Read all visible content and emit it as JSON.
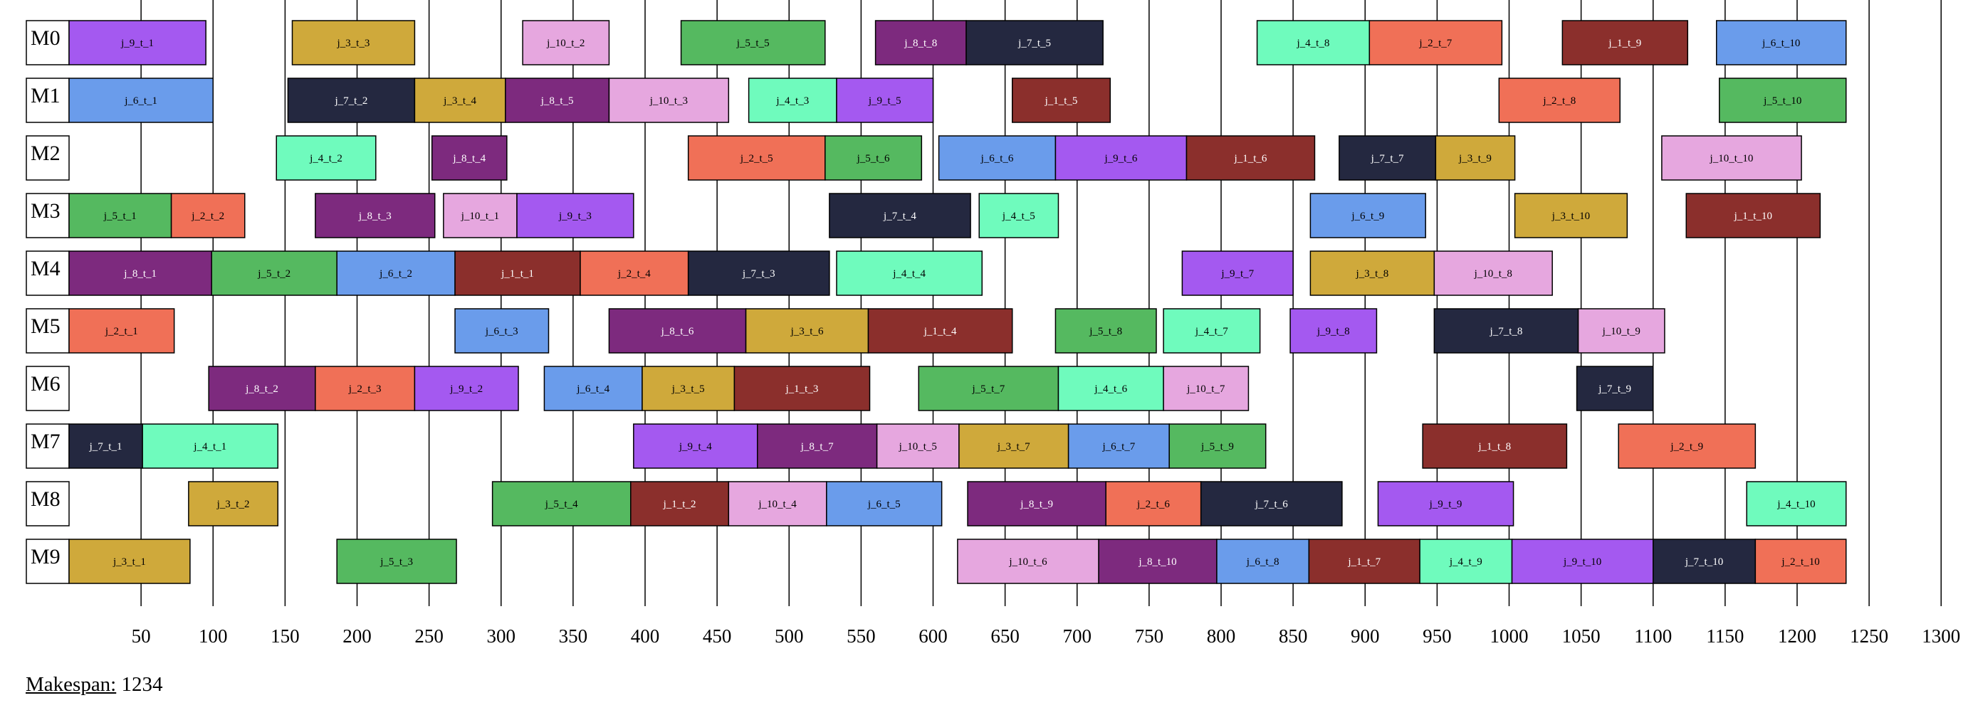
{
  "chart_data": {
    "type": "gantt",
    "machines": [
      "M0",
      "M1",
      "M2",
      "M3",
      "M4",
      "M5",
      "M6",
      "M7",
      "M8",
      "M9"
    ],
    "x_ticks": [
      50,
      100,
      150,
      200,
      250,
      300,
      350,
      400,
      450,
      500,
      550,
      600,
      650,
      700,
      750,
      800,
      850,
      900,
      950,
      1000,
      1050,
      1100,
      1150,
      1200,
      1250,
      1300
    ],
    "xlim": [
      0,
      1300
    ],
    "grid": "vertical lines at every tick",
    "job_colors": {
      "1": "#8b2f2c",
      "2": "#f07057",
      "3": "#cfa93b",
      "4": "#6ffbbd",
      "5": "#55b960",
      "6": "#6a9ceb",
      "7": "#242840",
      "8": "#7d2a7e",
      "9": "#a459f0",
      "10": "#e6a7df"
    },
    "tasks": [
      {
        "machine": 0,
        "job": 9,
        "label": "j_9_t_1",
        "start": 0,
        "end": 95
      },
      {
        "machine": 0,
        "job": 3,
        "label": "j_3_t_3",
        "start": 155,
        "end": 240
      },
      {
        "machine": 0,
        "job": 10,
        "label": "j_10_t_2",
        "start": 315,
        "end": 375
      },
      {
        "machine": 0,
        "job": 5,
        "label": "j_5_t_5",
        "start": 425,
        "end": 525
      },
      {
        "machine": 0,
        "job": 8,
        "label": "j_8_t_8",
        "start": 560,
        "end": 623
      },
      {
        "machine": 0,
        "job": 7,
        "label": "j_7_t_5",
        "start": 623,
        "end": 718
      },
      {
        "machine": 0,
        "job": 4,
        "label": "j_4_t_8",
        "start": 825,
        "end": 903
      },
      {
        "machine": 0,
        "job": 2,
        "label": "j_2_t_7",
        "start": 903,
        "end": 995
      },
      {
        "machine": 0,
        "job": 1,
        "label": "j_1_t_9",
        "start": 1037,
        "end": 1124
      },
      {
        "machine": 0,
        "job": 6,
        "label": "j_6_t_10",
        "start": 1144,
        "end": 1234
      },
      {
        "machine": 1,
        "job": 6,
        "label": "j_6_t_1",
        "start": 0,
        "end": 100
      },
      {
        "machine": 1,
        "job": 7,
        "label": "j_7_t_2",
        "start": 152,
        "end": 240
      },
      {
        "machine": 1,
        "job": 3,
        "label": "j_3_t_4",
        "start": 240,
        "end": 303
      },
      {
        "machine": 1,
        "job": 8,
        "label": "j_8_t_5",
        "start": 303,
        "end": 375
      },
      {
        "machine": 1,
        "job": 10,
        "label": "j_10_t_3",
        "start": 375,
        "end": 458
      },
      {
        "machine": 1,
        "job": 4,
        "label": "j_4_t_3",
        "start": 472,
        "end": 533
      },
      {
        "machine": 1,
        "job": 9,
        "label": "j_9_t_5",
        "start": 533,
        "end": 600
      },
      {
        "machine": 1,
        "job": 1,
        "label": "j_1_t_5",
        "start": 655,
        "end": 723
      },
      {
        "machine": 1,
        "job": 2,
        "label": "j_2_t_8",
        "start": 993,
        "end": 1077
      },
      {
        "machine": 1,
        "job": 5,
        "label": "j_5_t_10",
        "start": 1146,
        "end": 1234
      },
      {
        "machine": 2,
        "job": 4,
        "label": "j_4_t_2",
        "start": 144,
        "end": 213
      },
      {
        "machine": 2,
        "job": 8,
        "label": "j_8_t_4",
        "start": 252,
        "end": 304
      },
      {
        "machine": 2,
        "job": 2,
        "label": "j_2_t_5",
        "start": 430,
        "end": 525
      },
      {
        "machine": 2,
        "job": 5,
        "label": "j_5_t_6",
        "start": 525,
        "end": 592
      },
      {
        "machine": 2,
        "job": 6,
        "label": "j_6_t_6",
        "start": 604,
        "end": 685
      },
      {
        "machine": 2,
        "job": 9,
        "label": "j_9_t_6",
        "start": 685,
        "end": 776
      },
      {
        "machine": 2,
        "job": 1,
        "label": "j_1_t_6",
        "start": 776,
        "end": 865
      },
      {
        "machine": 2,
        "job": 7,
        "label": "j_7_t_7",
        "start": 882,
        "end": 949
      },
      {
        "machine": 2,
        "job": 3,
        "label": "j_3_t_9",
        "start": 949,
        "end": 1004
      },
      {
        "machine": 2,
        "job": 10,
        "label": "j_10_t_10",
        "start": 1106,
        "end": 1203
      },
      {
        "machine": 3,
        "job": 5,
        "label": "j_5_t_1",
        "start": 0,
        "end": 71
      },
      {
        "machine": 3,
        "job": 2,
        "label": "j_2_t_2",
        "start": 71,
        "end": 122
      },
      {
        "machine": 3,
        "job": 8,
        "label": "j_8_t_3",
        "start": 171,
        "end": 254
      },
      {
        "machine": 3,
        "job": 10,
        "label": "j_10_t_1",
        "start": 260,
        "end": 311
      },
      {
        "machine": 3,
        "job": 9,
        "label": "j_9_t_3",
        "start": 311,
        "end": 392
      },
      {
        "machine": 3,
        "job": 7,
        "label": "j_7_t_4",
        "start": 528,
        "end": 626
      },
      {
        "machine": 3,
        "job": 4,
        "label": "j_4_t_5",
        "start": 632,
        "end": 687
      },
      {
        "machine": 3,
        "job": 6,
        "label": "j_6_t_9",
        "start": 862,
        "end": 942
      },
      {
        "machine": 3,
        "job": 3,
        "label": "j_3_t_10",
        "start": 1004,
        "end": 1082
      },
      {
        "machine": 3,
        "job": 1,
        "label": "j_1_t_10",
        "start": 1123,
        "end": 1216
      },
      {
        "machine": 4,
        "job": 8,
        "label": "j_8_t_1",
        "start": 0,
        "end": 99
      },
      {
        "machine": 4,
        "job": 5,
        "label": "j_5_t_2",
        "start": 99,
        "end": 186
      },
      {
        "machine": 4,
        "job": 6,
        "label": "j_6_t_2",
        "start": 186,
        "end": 268
      },
      {
        "machine": 4,
        "job": 1,
        "label": "j_1_t_1",
        "start": 268,
        "end": 355
      },
      {
        "machine": 4,
        "job": 2,
        "label": "j_2_t_4",
        "start": 355,
        "end": 430
      },
      {
        "machine": 4,
        "job": 7,
        "label": "j_7_t_3",
        "start": 430,
        "end": 528
      },
      {
        "machine": 4,
        "job": 4,
        "label": "j_4_t_4",
        "start": 533,
        "end": 634
      },
      {
        "machine": 4,
        "job": 9,
        "label": "j_9_t_7",
        "start": 773,
        "end": 850
      },
      {
        "machine": 4,
        "job": 3,
        "label": "j_3_t_8",
        "start": 862,
        "end": 948
      },
      {
        "machine": 4,
        "job": 10,
        "label": "j_10_t_8",
        "start": 948,
        "end": 1030
      },
      {
        "machine": 5,
        "job": 2,
        "label": "j_2_t_1",
        "start": 0,
        "end": 73
      },
      {
        "machine": 5,
        "job": 6,
        "label": "j_6_t_3",
        "start": 268,
        "end": 333
      },
      {
        "machine": 5,
        "job": 8,
        "label": "j_8_t_6",
        "start": 375,
        "end": 470
      },
      {
        "machine": 5,
        "job": 3,
        "label": "j_3_t_6",
        "start": 470,
        "end": 555
      },
      {
        "machine": 5,
        "job": 1,
        "label": "j_1_t_4",
        "start": 555,
        "end": 655
      },
      {
        "machine": 5,
        "job": 5,
        "label": "j_5_t_8",
        "start": 685,
        "end": 755
      },
      {
        "machine": 5,
        "job": 4,
        "label": "j_4_t_7",
        "start": 760,
        "end": 827
      },
      {
        "machine": 5,
        "job": 9,
        "label": "j_9_t_8",
        "start": 848,
        "end": 908
      },
      {
        "machine": 5,
        "job": 7,
        "label": "j_7_t_8",
        "start": 948,
        "end": 1048
      },
      {
        "machine": 5,
        "job": 10,
        "label": "j_10_t_9",
        "start": 1048,
        "end": 1108
      },
      {
        "machine": 6,
        "job": 8,
        "label": "j_8_t_2",
        "start": 97,
        "end": 171
      },
      {
        "machine": 6,
        "job": 2,
        "label": "j_2_t_3",
        "start": 171,
        "end": 240
      },
      {
        "machine": 6,
        "job": 9,
        "label": "j_9_t_2",
        "start": 240,
        "end": 312
      },
      {
        "machine": 6,
        "job": 6,
        "label": "j_6_t_4",
        "start": 330,
        "end": 398
      },
      {
        "machine": 6,
        "job": 3,
        "label": "j_3_t_5",
        "start": 398,
        "end": 462
      },
      {
        "machine": 6,
        "job": 1,
        "label": "j_1_t_3",
        "start": 462,
        "end": 556
      },
      {
        "machine": 6,
        "job": 5,
        "label": "j_5_t_7",
        "start": 590,
        "end": 687
      },
      {
        "machine": 6,
        "job": 4,
        "label": "j_4_t_6",
        "start": 687,
        "end": 760
      },
      {
        "machine": 6,
        "job": 10,
        "label": "j_10_t_7",
        "start": 760,
        "end": 819
      },
      {
        "machine": 6,
        "job": 7,
        "label": "j_7_t_9",
        "start": 1047,
        "end": 1100
      },
      {
        "machine": 7,
        "job": 7,
        "label": "j_7_t_1",
        "start": 0,
        "end": 51
      },
      {
        "machine": 7,
        "job": 4,
        "label": "j_4_t_1",
        "start": 51,
        "end": 145
      },
      {
        "machine": 7,
        "job": 9,
        "label": "j_9_t_4",
        "start": 392,
        "end": 478
      },
      {
        "machine": 7,
        "job": 8,
        "label": "j_8_t_7",
        "start": 478,
        "end": 561
      },
      {
        "machine": 7,
        "job": 10,
        "label": "j_10_t_5",
        "start": 561,
        "end": 618
      },
      {
        "machine": 7,
        "job": 3,
        "label": "j_3_t_7",
        "start": 618,
        "end": 694
      },
      {
        "machine": 7,
        "job": 6,
        "label": "j_6_t_7",
        "start": 694,
        "end": 764
      },
      {
        "machine": 7,
        "job": 5,
        "label": "j_5_t_9",
        "start": 764,
        "end": 831
      },
      {
        "machine": 7,
        "job": 1,
        "label": "j_1_t_8",
        "start": 940,
        "end": 1040
      },
      {
        "machine": 7,
        "job": 2,
        "label": "j_2_t_9",
        "start": 1076,
        "end": 1171
      },
      {
        "machine": 8,
        "job": 3,
        "label": "j_3_t_2",
        "start": 83,
        "end": 145
      },
      {
        "machine": 8,
        "job": 5,
        "label": "j_5_t_4",
        "start": 294,
        "end": 390
      },
      {
        "machine": 8,
        "job": 1,
        "label": "j_1_t_2",
        "start": 390,
        "end": 458
      },
      {
        "machine": 8,
        "job": 10,
        "label": "j_10_t_4",
        "start": 458,
        "end": 526
      },
      {
        "machine": 8,
        "job": 6,
        "label": "j_6_t_5",
        "start": 526,
        "end": 606
      },
      {
        "machine": 8,
        "job": 8,
        "label": "j_8_t_9",
        "start": 624,
        "end": 720
      },
      {
        "machine": 8,
        "job": 2,
        "label": "j_2_t_6",
        "start": 720,
        "end": 786
      },
      {
        "machine": 8,
        "job": 7,
        "label": "j_7_t_6",
        "start": 786,
        "end": 884
      },
      {
        "machine": 8,
        "job": 9,
        "label": "j_9_t_9",
        "start": 909,
        "end": 1003
      },
      {
        "machine": 8,
        "job": 4,
        "label": "j_4_t_10",
        "start": 1165,
        "end": 1234
      },
      {
        "machine": 9,
        "job": 3,
        "label": "j_3_t_1",
        "start": 0,
        "end": 84
      },
      {
        "machine": 9,
        "job": 5,
        "label": "j_5_t_3",
        "start": 186,
        "end": 269
      },
      {
        "machine": 9,
        "job": 10,
        "label": "j_10_t_6",
        "start": 617,
        "end": 715
      },
      {
        "machine": 9,
        "job": 8,
        "label": "j_8_t_10",
        "start": 715,
        "end": 797
      },
      {
        "machine": 9,
        "job": 6,
        "label": "j_6_t_8",
        "start": 797,
        "end": 861
      },
      {
        "machine": 9,
        "job": 1,
        "label": "j_1_t_7",
        "start": 861,
        "end": 938
      },
      {
        "machine": 9,
        "job": 4,
        "label": "j_4_t_9",
        "start": 938,
        "end": 1002
      },
      {
        "machine": 9,
        "job": 9,
        "label": "j_9_t_10",
        "start": 1002,
        "end": 1100
      },
      {
        "machine": 9,
        "job": 7,
        "label": "j_7_t_10",
        "start": 1100,
        "end": 1171
      },
      {
        "machine": 9,
        "job": 2,
        "label": "j_2_t_10",
        "start": 1171,
        "end": 1234
      }
    ]
  },
  "makespan": {
    "label": "Makespan:",
    "value": "1234"
  }
}
